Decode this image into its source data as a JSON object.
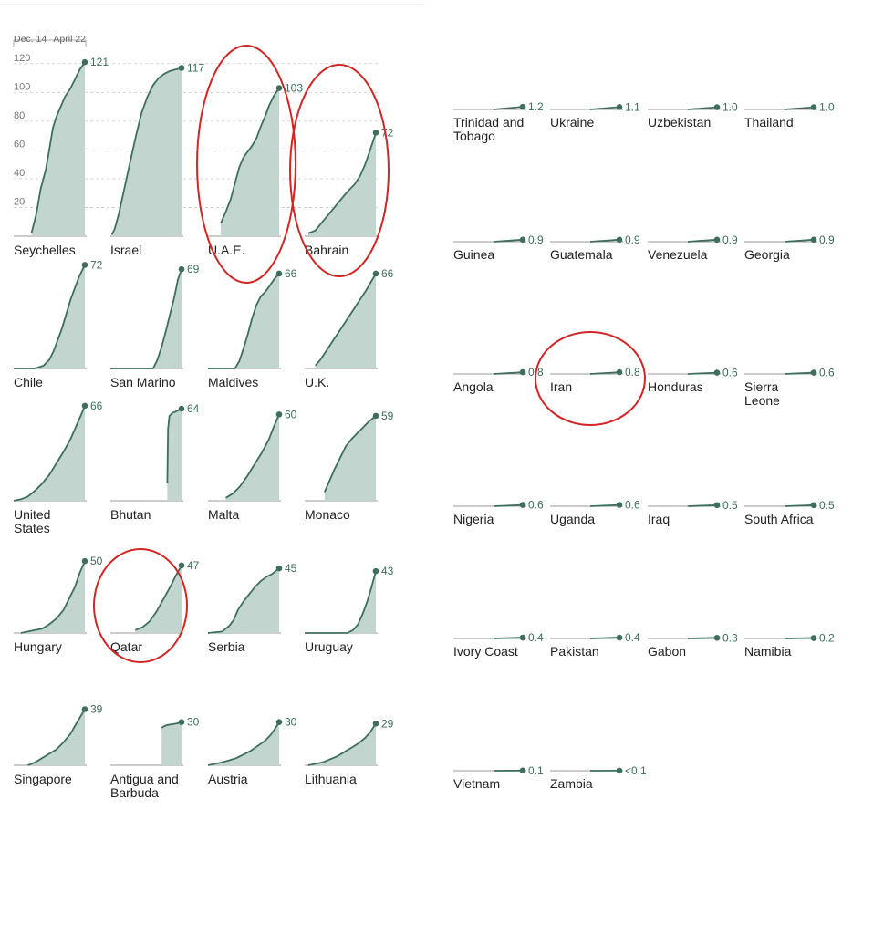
{
  "chart_data": [
    {
      "type": "area",
      "small_multiples": true,
      "x_range_labels": [
        "Dec. 14",
        "April 22"
      ],
      "y_ticks": [
        20,
        40,
        60,
        80,
        100,
        120
      ],
      "ylim": [
        0,
        130
      ],
      "grid": true,
      "colors": {
        "line": "#3e6e5d",
        "fill": "#c2d6cf",
        "grid": "#cccccc",
        "axis": "#999999"
      },
      "panels": [
        {
          "name": "Seychelles",
          "final": "121",
          "curve": [
            [
              0.25,
              2
            ],
            [
              0.32,
              16
            ],
            [
              0.38,
              33
            ],
            [
              0.45,
              46
            ],
            [
              0.5,
              60
            ],
            [
              0.55,
              75
            ],
            [
              0.6,
              83
            ],
            [
              0.66,
              90
            ],
            [
              0.72,
              97
            ],
            [
              0.8,
              103
            ],
            [
              0.86,
              109
            ],
            [
              0.93,
              116
            ],
            [
              1,
              121
            ]
          ]
        },
        {
          "name": "Israel",
          "final": "117",
          "curve": [
            [
              0.02,
              1
            ],
            [
              0.06,
              5
            ],
            [
              0.12,
              16
            ],
            [
              0.2,
              34
            ],
            [
              0.28,
              52
            ],
            [
              0.36,
              70
            ],
            [
              0.44,
              86
            ],
            [
              0.52,
              97
            ],
            [
              0.6,
              105
            ],
            [
              0.68,
              110
            ],
            [
              0.76,
              113
            ],
            [
              0.84,
              115
            ],
            [
              0.92,
              116
            ],
            [
              1,
              117
            ]
          ]
        },
        {
          "name": "U.A.E.",
          "final": "103",
          "curve": [
            [
              0.18,
              9
            ],
            [
              0.25,
              17
            ],
            [
              0.32,
              26
            ],
            [
              0.38,
              37
            ],
            [
              0.44,
              48
            ],
            [
              0.5,
              55
            ],
            [
              0.56,
              59
            ],
            [
              0.62,
              63
            ],
            [
              0.68,
              68
            ],
            [
              0.74,
              76
            ],
            [
              0.8,
              83
            ],
            [
              0.86,
              91
            ],
            [
              0.93,
              98
            ],
            [
              1,
              103
            ]
          ]
        },
        {
          "name": "Bahrain",
          "final": "72",
          "curve": [
            [
              0.05,
              2
            ],
            [
              0.15,
              4
            ],
            [
              0.25,
              10
            ],
            [
              0.35,
              16
            ],
            [
              0.45,
              22
            ],
            [
              0.55,
              28
            ],
            [
              0.62,
              32
            ],
            [
              0.7,
              36
            ],
            [
              0.78,
              42
            ],
            [
              0.85,
              50
            ],
            [
              0.92,
              60
            ],
            [
              1,
              72
            ]
          ]
        },
        {
          "name": "Chile",
          "final": "72",
          "curve": [
            [
              0,
              0
            ],
            [
              0.3,
              0
            ],
            [
              0.42,
              2
            ],
            [
              0.5,
              6
            ],
            [
              0.56,
              12
            ],
            [
              0.62,
              20
            ],
            [
              0.68,
              28
            ],
            [
              0.74,
              38
            ],
            [
              0.8,
              48
            ],
            [
              0.86,
              56
            ],
            [
              0.92,
              64
            ],
            [
              1,
              72
            ]
          ]
        },
        {
          "name": "San Marino",
          "final": "69",
          "curve": [
            [
              0,
              0
            ],
            [
              0.6,
              0
            ],
            [
              0.66,
              6
            ],
            [
              0.72,
              15
            ],
            [
              0.78,
              26
            ],
            [
              0.84,
              38
            ],
            [
              0.9,
              50
            ],
            [
              0.95,
              62
            ],
            [
              1,
              69
            ]
          ]
        },
        {
          "name": "Maldives",
          "final": "66",
          "curve": [
            [
              0,
              0
            ],
            [
              0.38,
              0
            ],
            [
              0.44,
              5
            ],
            [
              0.5,
              14
            ],
            [
              0.56,
              24
            ],
            [
              0.62,
              35
            ],
            [
              0.68,
              44
            ],
            [
              0.74,
              50
            ],
            [
              0.8,
              53
            ],
            [
              0.86,
              57
            ],
            [
              0.93,
              62
            ],
            [
              1,
              66
            ]
          ]
        },
        {
          "name": "U.K.",
          "final": "66",
          "curve": [
            [
              0.15,
              2
            ],
            [
              0.22,
              6
            ],
            [
              0.3,
              12
            ],
            [
              0.38,
              18
            ],
            [
              0.46,
              24
            ],
            [
              0.54,
              30
            ],
            [
              0.62,
              36
            ],
            [
              0.7,
              42
            ],
            [
              0.78,
              48
            ],
            [
              0.86,
              54
            ],
            [
              0.93,
              60
            ],
            [
              1,
              66
            ]
          ]
        },
        {
          "name": "United States",
          "final": "66",
          "curve": [
            [
              0,
              0
            ],
            [
              0.1,
              1
            ],
            [
              0.2,
              3
            ],
            [
              0.3,
              7
            ],
            [
              0.4,
              12
            ],
            [
              0.5,
              18
            ],
            [
              0.6,
              26
            ],
            [
              0.7,
              34
            ],
            [
              0.8,
              43
            ],
            [
              0.88,
              52
            ],
            [
              0.95,
              60
            ],
            [
              1,
              66
            ]
          ]
        },
        {
          "name": "Bhutan",
          "final": "64",
          "curve": [
            [
              0.8,
              12
            ],
            [
              0.81,
              50
            ],
            [
              0.83,
              59
            ],
            [
              0.87,
              61
            ],
            [
              0.92,
              62
            ],
            [
              1,
              64
            ]
          ]
        },
        {
          "name": "Malta",
          "final": "60",
          "curve": [
            [
              0.25,
              2
            ],
            [
              0.35,
              5
            ],
            [
              0.45,
              10
            ],
            [
              0.55,
              17
            ],
            [
              0.65,
              25
            ],
            [
              0.75,
              33
            ],
            [
              0.85,
              42
            ],
            [
              0.93,
              52
            ],
            [
              1,
              60
            ]
          ]
        },
        {
          "name": "Monaco",
          "final": "59",
          "curve": [
            [
              0.28,
              6
            ],
            [
              0.35,
              14
            ],
            [
              0.42,
              22
            ],
            [
              0.5,
              30
            ],
            [
              0.58,
              38
            ],
            [
              0.66,
              43
            ],
            [
              0.74,
              47
            ],
            [
              0.82,
              51
            ],
            [
              0.9,
              55
            ],
            [
              1,
              59
            ]
          ]
        },
        {
          "name": "Hungary",
          "final": "50",
          "curve": [
            [
              0.1,
              0
            ],
            [
              0.2,
              1
            ],
            [
              0.3,
              2
            ],
            [
              0.4,
              3
            ],
            [
              0.5,
              6
            ],
            [
              0.6,
              10
            ],
            [
              0.7,
              16
            ],
            [
              0.78,
              24
            ],
            [
              0.86,
              32
            ],
            [
              0.93,
              42
            ],
            [
              1,
              50
            ]
          ]
        },
        {
          "name": "Qatar",
          "final": "47",
          "curve": [
            [
              0.35,
              2
            ],
            [
              0.45,
              4
            ],
            [
              0.55,
              8
            ],
            [
              0.65,
              15
            ],
            [
              0.75,
              24
            ],
            [
              0.85,
              33
            ],
            [
              0.92,
              40
            ],
            [
              1,
              47
            ]
          ]
        },
        {
          "name": "Serbia",
          "final": "45",
          "curve": [
            [
              0,
              0
            ],
            [
              0.2,
              1
            ],
            [
              0.3,
              5
            ],
            [
              0.36,
              9
            ],
            [
              0.42,
              16
            ],
            [
              0.5,
              22
            ],
            [
              0.58,
              27
            ],
            [
              0.66,
              32
            ],
            [
              0.74,
              36
            ],
            [
              0.82,
              39
            ],
            [
              0.9,
              41
            ],
            [
              1,
              45
            ]
          ]
        },
        {
          "name": "Uruguay",
          "final": "43",
          "curve": [
            [
              0,
              0
            ],
            [
              0.6,
              0
            ],
            [
              0.68,
              2
            ],
            [
              0.75,
              6
            ],
            [
              0.82,
              14
            ],
            [
              0.88,
              22
            ],
            [
              0.94,
              32
            ],
            [
              1,
              43
            ]
          ]
        },
        {
          "name": "Singapore",
          "final": "39",
          "curve": [
            [
              0.2,
              0
            ],
            [
              0.3,
              2
            ],
            [
              0.4,
              5
            ],
            [
              0.5,
              8
            ],
            [
              0.6,
              11
            ],
            [
              0.7,
              16
            ],
            [
              0.8,
              22
            ],
            [
              0.88,
              29
            ],
            [
              0.94,
              34
            ],
            [
              1,
              39
            ]
          ]
        },
        {
          "name": "Antigua and Barbuda",
          "final": "30",
          "curve": [
            [
              0.72,
              26
            ],
            [
              0.75,
              27
            ],
            [
              0.8,
              28
            ],
            [
              0.86,
              28.5
            ],
            [
              0.93,
              29
            ],
            [
              1,
              30
            ]
          ]
        },
        {
          "name": "Austria",
          "final": "30",
          "curve": [
            [
              0,
              0
            ],
            [
              0.1,
              1
            ],
            [
              0.2,
              2
            ],
            [
              0.3,
              3.5
            ],
            [
              0.4,
              5
            ],
            [
              0.5,
              7.5
            ],
            [
              0.6,
              10
            ],
            [
              0.7,
              13.5
            ],
            [
              0.8,
              17
            ],
            [
              0.88,
              21
            ],
            [
              0.95,
              26
            ],
            [
              1,
              30
            ]
          ]
        },
        {
          "name": "Lithuania",
          "final": "29",
          "curve": [
            [
              0.05,
              0
            ],
            [
              0.15,
              1
            ],
            [
              0.25,
              2
            ],
            [
              0.35,
              4
            ],
            [
              0.45,
              6
            ],
            [
              0.55,
              9
            ],
            [
              0.65,
              12
            ],
            [
              0.75,
              15
            ],
            [
              0.85,
              19
            ],
            [
              0.92,
              23
            ],
            [
              1,
              29
            ]
          ]
        }
      ]
    },
    {
      "type": "line",
      "small_multiples": true,
      "ylim": [
        0,
        130
      ],
      "colors": {
        "line": "#3e6e5d",
        "axis": "#999999"
      },
      "panels": [
        {
          "name": "Trinidad and Tobago",
          "final": "1.2",
          "value": 1.2
        },
        {
          "name": "Ukraine",
          "final": "1.1",
          "value": 1.1
        },
        {
          "name": "Uzbekistan",
          "final": "1.0",
          "value": 1.0
        },
        {
          "name": "Thailand",
          "final": "1.0",
          "value": 1.0
        },
        {
          "name": "Guinea",
          "final": "0.9",
          "value": 0.9
        },
        {
          "name": "Guatemala",
          "final": "0.9",
          "value": 0.9
        },
        {
          "name": "Venezuela",
          "final": "0.9",
          "value": 0.9
        },
        {
          "name": "Georgia",
          "final": "0.9",
          "value": 0.9
        },
        {
          "name": "Angola",
          "final": "0.8",
          "value": 0.8
        },
        {
          "name": "Iran",
          "final": "0.8",
          "value": 0.8
        },
        {
          "name": "Honduras",
          "final": "0.6",
          "value": 0.6
        },
        {
          "name": "Sierra Leone",
          "final": "0.6",
          "value": 0.6
        },
        {
          "name": "Nigeria",
          "final": "0.6",
          "value": 0.6
        },
        {
          "name": "Uganda",
          "final": "0.6",
          "value": 0.6
        },
        {
          "name": "Iraq",
          "final": "0.5",
          "value": 0.5
        },
        {
          "name": "South Africa",
          "final": "0.5",
          "value": 0.5
        },
        {
          "name": "Ivory Coast",
          "final": "0.4",
          "value": 0.4
        },
        {
          "name": "Pakistan",
          "final": "0.4",
          "value": 0.4
        },
        {
          "name": "Gabon",
          "final": "0.3",
          "value": 0.3
        },
        {
          "name": "Namibia",
          "final": "0.2",
          "value": 0.2
        },
        {
          "name": "Vietnam",
          "final": "0.1",
          "value": 0.1
        },
        {
          "name": "Zambia",
          "final": "<0.1",
          "value": 0.05
        }
      ]
    }
  ],
  "annotations": {
    "highlighted": [
      "U.A.E.",
      "Bahrain",
      "Qatar",
      "Iran"
    ],
    "color": "#d42525"
  }
}
